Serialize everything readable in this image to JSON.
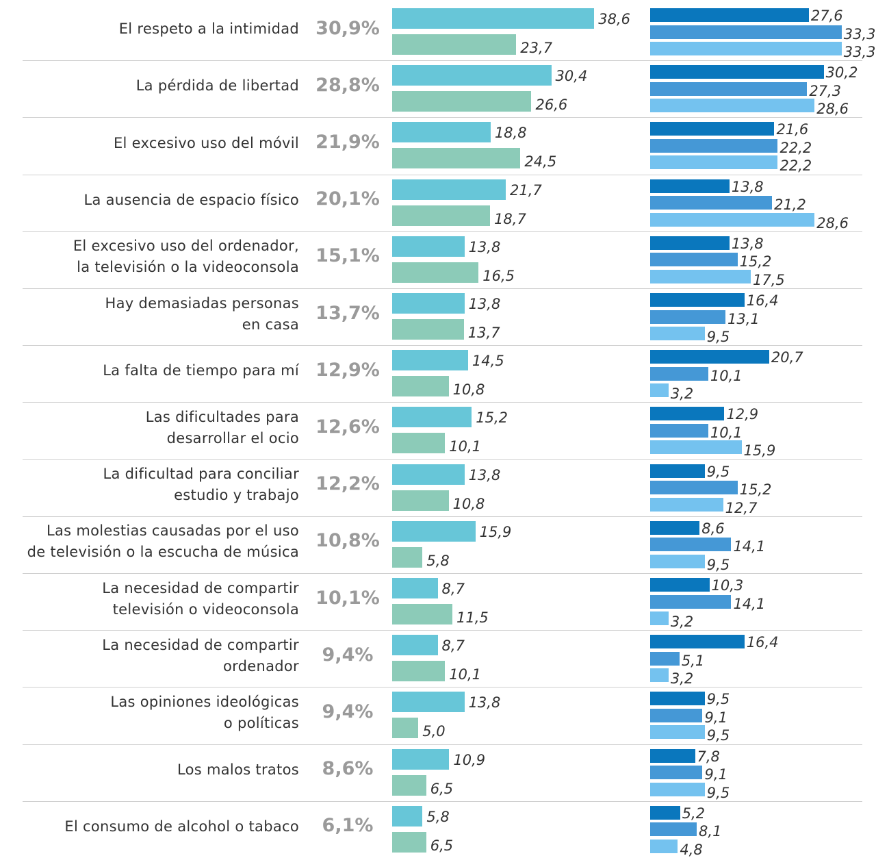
{
  "chart_data": [
    {
      "type": "bar",
      "orientation": "horizontal",
      "categories": [
        "El respeto a la intimidad",
        "La pérdida de libertad",
        "El excesivo uso del móvil",
        "La ausencia de espacio físico",
        "El excesivo uso del ordenador,\nla televisión o la videoconsola",
        "Hay demasiadas personas\nen casa",
        "La falta de tiempo para mí",
        "Las dificultades para\ndesarrollar el ocio",
        "La dificultad para conciliar\nestudio y trabajo",
        "Las molestias causadas por el uso\nde televisión o la escucha de música",
        "La necesidad de compartir\ntelevisión o videoconsola",
        "La necesidad de compartir\nordenador",
        "Las opiniones ideológicas\no políticas",
        "Los malos tratos",
        "El consumo de alcohol o tabaco"
      ],
      "totals": {
        "values": [
          30.9,
          28.8,
          21.9,
          20.1,
          15.1,
          13.7,
          12.9,
          12.6,
          12.2,
          10.8,
          10.1,
          9.4,
          9.4,
          8.6,
          6.1
        ],
        "value_labels": [
          "30,9%",
          "28,8%",
          "21,9%",
          "20,1%",
          "15,1%",
          "13,7%",
          "12,9%",
          "12,6%",
          "12,2%",
          "10,8%",
          "10,1%",
          "9,4%",
          "9,4%",
          "8,6%",
          "6,1%"
        ]
      },
      "series": [
        {
          "color": "#67c6d8",
          "values": [
            38.6,
            30.4,
            18.8,
            21.7,
            13.8,
            13.8,
            14.5,
            15.2,
            13.8,
            15.9,
            8.7,
            8.7,
            13.8,
            10.9,
            5.8
          ],
          "value_labels": [
            "38,6",
            "30,4",
            "18,8",
            "21,7",
            "13,8",
            "13,8",
            "14,5",
            "15,2",
            "13,8",
            "15,9",
            "8,7",
            "8,7",
            "13,8",
            "10,9",
            "5,8"
          ]
        },
        {
          "color": "#8ccbb8",
          "values": [
            23.7,
            26.6,
            24.5,
            18.7,
            16.5,
            13.7,
            10.8,
            10.1,
            10.8,
            5.8,
            11.5,
            10.1,
            5.0,
            6.5,
            6.5
          ],
          "value_labels": [
            "23,7",
            "26,6",
            "24,5",
            "18,7",
            "16,5",
            "13,7",
            "10,8",
            "10,1",
            "10,8",
            "5,8",
            "11,5",
            "10,1",
            "5,0",
            "6,5",
            "6,5"
          ]
        }
      ]
    },
    {
      "type": "bar",
      "orientation": "horizontal",
      "series": [
        {
          "color": "#0a77bd",
          "values": [
            27.6,
            30.2,
            21.6,
            13.8,
            13.8,
            16.4,
            20.7,
            12.9,
            9.5,
            8.6,
            10.3,
            16.4,
            9.5,
            7.8,
            5.2
          ],
          "value_labels": [
            "27,6",
            "30,2",
            "21,6",
            "13,8",
            "13,8",
            "16,4",
            "20,7",
            "12,9",
            "9,5",
            "8,6",
            "10,3",
            "16,4",
            "9,5",
            "7,8",
            "5,2"
          ]
        },
        {
          "color": "#4598d6",
          "values": [
            33.3,
            27.3,
            22.2,
            21.2,
            15.2,
            13.1,
            10.1,
            10.1,
            15.2,
            14.1,
            14.1,
            5.1,
            9.1,
            9.1,
            8.1
          ],
          "value_labels": [
            "33,3",
            "27,3",
            "22,2",
            "21,2",
            "15,2",
            "13,1",
            "10,1",
            "10,1",
            "15,2",
            "14,1",
            "14,1",
            "5,1",
            "9,1",
            "9,1",
            "8,1"
          ]
        },
        {
          "color": "#74c2ef",
          "values": [
            33.3,
            28.6,
            22.2,
            28.6,
            17.5,
            9.5,
            3.2,
            15.9,
            12.7,
            9.5,
            3.2,
            3.2,
            9.5,
            9.5,
            4.8
          ],
          "value_labels": [
            "33,3",
            "28,6",
            "22,2",
            "28,6",
            "17,5",
            "9,5",
            "3,2",
            "15,9",
            "12,7",
            "9,5",
            "3,2",
            "3,2",
            "9,5",
            "9,5",
            "4,8"
          ]
        }
      ]
    }
  ]
}
